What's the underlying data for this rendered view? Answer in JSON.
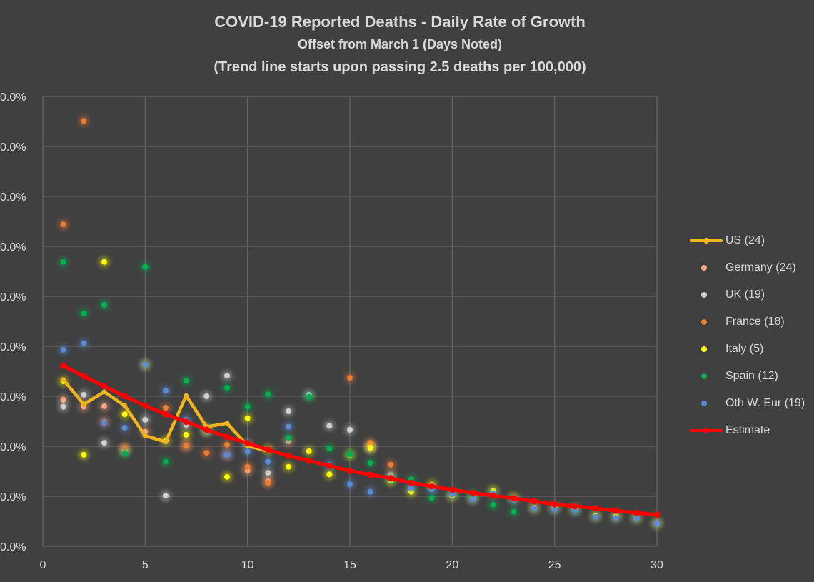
{
  "chart_data": {
    "type": "scatter",
    "title": "COVID-19 Reported Deaths - Daily Rate of Growth",
    "subtitle": "Offset from March 1 (Days Noted)",
    "subtitle2": "(Trend line starts upon passing 2.5 deaths per 100,000)",
    "xlabel": "",
    "ylabel": "",
    "xlim": [
      0,
      30
    ],
    "ylim": [
      0,
      90
    ],
    "x_ticks": [
      "0",
      "5",
      "10",
      "15",
      "20",
      "25",
      "30"
    ],
    "y_ticks": [
      "0.0%",
      "0.0%",
      "0.0%",
      "0.0%",
      "0.0%",
      "0.0%",
      "0.0%",
      "0.0%",
      "0.0%",
      "0.0%"
    ],
    "grid": true,
    "legend_position": "right",
    "series": [
      {
        "name": "US (24)",
        "kind": "line",
        "color": "#f0b41c",
        "x": [
          1,
          2,
          3,
          4,
          5,
          6,
          7,
          8,
          9,
          10,
          11
        ],
        "y": [
          33.3,
          28.4,
          30.9,
          28.1,
          22.1,
          20.9,
          30.1,
          23.9,
          24.6,
          20.1,
          19.0
        ]
      },
      {
        "name": "Germany (24)",
        "kind": "scatter",
        "color": "#f4a582",
        "x": [
          1,
          2,
          3,
          4,
          5,
          7,
          8,
          9,
          10,
          11,
          12,
          16,
          17
        ],
        "y": [
          29.3,
          27.9,
          28.0,
          19.2,
          22.9,
          20.1,
          23.0,
          18.3,
          15.1,
          13.0,
          21.0,
          20.0,
          14.3
        ]
      },
      {
        "name": "UK (19)",
        "kind": "scatter",
        "color": "#cfcfcf",
        "x": [
          1,
          2,
          3,
          4,
          5,
          6,
          7,
          8,
          9,
          10,
          11,
          12,
          13,
          14,
          15,
          16
        ],
        "y": [
          27.9,
          30.3,
          20.7,
          19.3,
          25.3,
          10.1,
          24.3,
          30.0,
          34.1,
          20.3,
          14.7,
          27.0,
          30.3,
          24.1,
          23.3,
          19.7
        ]
      },
      {
        "name": "France (18)",
        "kind": "scatter",
        "color": "#ed7d31",
        "x": [
          1,
          2,
          3,
          4,
          6,
          7,
          8,
          9,
          10,
          11,
          15,
          16,
          17
        ],
        "y": [
          64.4,
          85.1,
          24.9,
          19.7,
          27.7,
          20.1,
          18.7,
          20.3,
          15.9,
          12.7,
          33.7,
          20.7,
          16.3
        ]
      },
      {
        "name": "Italy (5)",
        "kind": "scatter",
        "color": "#ffff00",
        "x": [
          1,
          2,
          3,
          4,
          5,
          6,
          7,
          8,
          9,
          10,
          11,
          12,
          13,
          14,
          15,
          16,
          17,
          18,
          19,
          20,
          21,
          22,
          23,
          24,
          25,
          26,
          27,
          28,
          29,
          30
        ],
        "y": [
          33.0,
          18.3,
          56.9,
          26.4,
          36.3,
          21.1,
          22.3,
          23.4,
          13.9,
          25.6,
          19.3,
          15.9,
          19.0,
          14.4,
          18.3,
          19.7,
          13.1,
          10.9,
          12.3,
          10.1,
          9.6,
          11.1,
          9.7,
          7.7,
          7.7,
          7.4,
          6.1,
          6.0,
          5.7,
          4.6
        ]
      },
      {
        "name": "Spain (12)",
        "kind": "scatter",
        "color": "#00b050",
        "x": [
          1,
          2,
          3,
          4,
          5,
          6,
          7,
          8,
          9,
          10,
          11,
          12,
          13,
          14,
          15,
          16,
          17,
          18,
          19,
          20,
          21,
          22,
          23
        ],
        "y": [
          56.9,
          46.6,
          48.3,
          18.6,
          55.9,
          16.9,
          33.1,
          23.4,
          31.7,
          27.9,
          30.4,
          21.7,
          29.9,
          19.6,
          18.4,
          16.7,
          13.6,
          13.4,
          9.7,
          10.7,
          10.3,
          8.3,
          6.9
        ]
      },
      {
        "name": "Oth W. Eur (19)",
        "kind": "scatter",
        "color": "#5b8bd6",
        "x": [
          1,
          2,
          3,
          4,
          5,
          6,
          7,
          8,
          9,
          10,
          11,
          12,
          14,
          15,
          16,
          17,
          18,
          19,
          20,
          21,
          22,
          23,
          24,
          25,
          26,
          27,
          28,
          29,
          30
        ],
        "y": [
          39.3,
          40.6,
          24.7,
          23.7,
          36.3,
          31.1,
          25.3,
          23.4,
          18.3,
          18.9,
          16.9,
          23.9,
          16.3,
          12.4,
          10.9,
          13.7,
          11.7,
          11.4,
          10.4,
          9.4,
          10.6,
          9.3,
          7.6,
          7.4,
          7.1,
          5.9,
          5.7,
          5.6,
          4.6
        ]
      },
      {
        "name": "Estimate",
        "kind": "line",
        "color": "#ff0000",
        "x": [
          1,
          2,
          3,
          4,
          5,
          6,
          7,
          8,
          9,
          10,
          11,
          12,
          13,
          14,
          15,
          16,
          17,
          18,
          19,
          20,
          21,
          22,
          23,
          24,
          25,
          26,
          27,
          28,
          29,
          30
        ],
        "y": [
          36.1,
          34.0,
          32.0,
          30.0,
          28.1,
          26.4,
          24.9,
          23.3,
          21.9,
          20.6,
          19.3,
          18.1,
          17.1,
          16.1,
          15.1,
          14.3,
          13.6,
          12.7,
          12.0,
          11.3,
          10.7,
          10.1,
          9.6,
          9.0,
          8.4,
          8.0,
          7.6,
          7.1,
          6.7,
          6.3
        ]
      }
    ]
  }
}
